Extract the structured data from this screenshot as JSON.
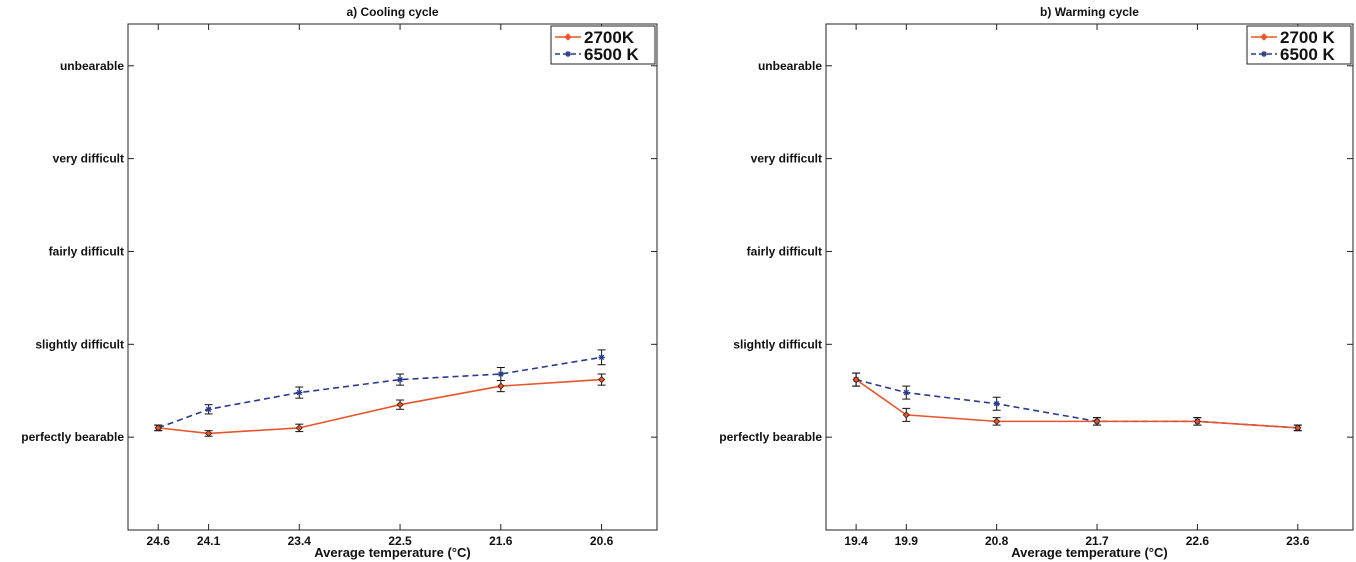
{
  "chart_data": [
    {
      "type": "line",
      "title": "a) Cooling cycle",
      "xlabel": "Average temperature (°C)",
      "ylabel": "",
      "x_ticks": [
        "24.6",
        "24.1",
        "23.4",
        "22.5",
        "21.6",
        "20.6"
      ],
      "x_positions": [
        0,
        0.5,
        1.4,
        2.4,
        3.4,
        4.4
      ],
      "xlim": [
        -0.3,
        4.95
      ],
      "y_ticks": [
        "perfectly bearable",
        "slightly difficult",
        "fairly difficult",
        "very difficult",
        "unbearable"
      ],
      "y_tick_values": [
        1,
        2,
        3,
        4,
        5
      ],
      "ylim": [
        0,
        5.45
      ],
      "legend_position": "top-right",
      "series": [
        {
          "name": "2700K",
          "color": "#e8542b",
          "style": "solid",
          "marker": "diamond",
          "values": [
            1.1,
            1.04,
            1.1,
            1.35,
            1.55,
            1.62
          ],
          "errors": [
            0.03,
            0.03,
            0.04,
            0.05,
            0.06,
            0.06
          ]
        },
        {
          "name": "6500 K",
          "color": "#2b3a8c",
          "style": "dashed",
          "marker": "asterisk",
          "values": [
            1.1,
            1.3,
            1.48,
            1.62,
            1.68,
            1.86
          ],
          "errors": [
            0.03,
            0.05,
            0.06,
            0.06,
            0.07,
            0.08
          ]
        }
      ]
    },
    {
      "type": "line",
      "title": "b) Warming cycle",
      "xlabel": "Average temperature (°C)",
      "ylabel": "",
      "x_ticks": [
        "19.4",
        "19.9",
        "20.8",
        "21.7",
        "22.6",
        "23.6"
      ],
      "x_positions": [
        0,
        0.5,
        1.4,
        2.4,
        3.4,
        4.4
      ],
      "xlim": [
        -0.3,
        4.95
      ],
      "y_ticks": [
        "perfectly bearable",
        "slightly difficult",
        "fairly difficult",
        "very difficult",
        "unbearable"
      ],
      "y_tick_values": [
        1,
        2,
        3,
        4,
        5
      ],
      "ylim": [
        0,
        5.45
      ],
      "legend_position": "top-right",
      "series": [
        {
          "name": "2700 K",
          "color": "#e8542b",
          "style": "solid",
          "marker": "diamond",
          "values": [
            1.62,
            1.24,
            1.17,
            1.17,
            1.17,
            1.1
          ],
          "errors": [
            0.07,
            0.07,
            0.04,
            0.04,
            0.04,
            0.03
          ]
        },
        {
          "name": "6500 K",
          "color": "#2b3a8c",
          "style": "dashed",
          "marker": "asterisk",
          "values": [
            1.62,
            1.48,
            1.36,
            1.17,
            1.17,
            1.1
          ],
          "errors": [
            0.07,
            0.07,
            0.07,
            0.04,
            0.04,
            0.03
          ]
        }
      ]
    }
  ]
}
